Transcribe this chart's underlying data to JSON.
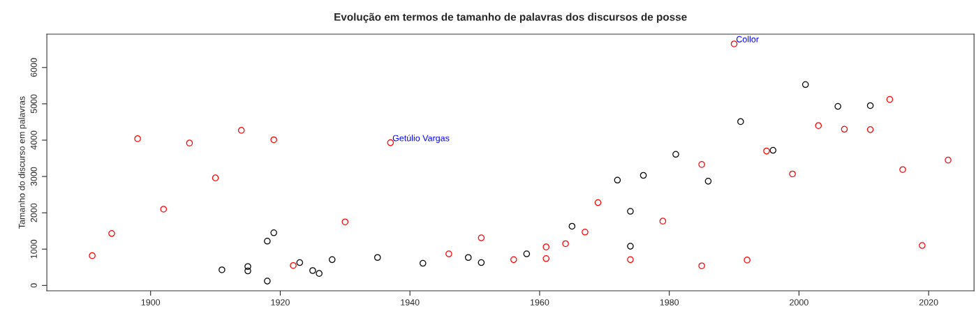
{
  "chart_data": {
    "type": "scatter",
    "title": "Evolução em termos de tamanho de palavras dos discursos de posse",
    "ylabel": "Tamanho do discurso em palavras",
    "xlim": [
      1884,
      2027
    ],
    "ylim": [
      -147,
      6916
    ],
    "xticks": [
      1900,
      1920,
      1940,
      1960,
      1980,
      2000,
      2020
    ],
    "yticks": [
      0,
      1000,
      2000,
      3000,
      4000,
      5000,
      6000
    ],
    "marker": "circle",
    "grid": false,
    "series": [
      {
        "color": "#ff0000",
        "x": [
          1891,
          1894,
          1898,
          1902,
          1906,
          1910,
          1914,
          1919,
          1922,
          1930,
          1937,
          1946,
          1951,
          1956,
          1961,
          1961,
          1964,
          1967,
          1969,
          1974,
          1979,
          1985,
          1985,
          1990,
          1992,
          1995,
          1999,
          2003,
          2007,
          2011,
          2014,
          2016,
          2019,
          2023
        ],
        "values": [
          820,
          1430,
          4040,
          2100,
          3920,
          2960,
          4270,
          4010,
          550,
          1750,
          3930,
          870,
          1310,
          710,
          1060,
          740,
          1150,
          1470,
          2280,
          710,
          1770,
          3330,
          540,
          6650,
          700,
          3700,
          3070,
          4400,
          4300,
          4290,
          5120,
          3190,
          1100,
          3450
        ]
      },
      {
        "color": "#000000",
        "x": [
          1911,
          1915,
          1915,
          1918,
          1919,
          1918,
          1923,
          1925,
          1926,
          1928,
          1935,
          1942,
          1949,
          1951,
          1958,
          1965,
          1972,
          1974,
          1974,
          1976,
          1981,
          1986,
          1991,
          1996,
          2001,
          2006,
          2011
        ],
        "values": [
          430,
          520,
          400,
          1220,
          1450,
          120,
          630,
          410,
          330,
          710,
          770,
          610,
          770,
          630,
          870,
          1630,
          2900,
          2040,
          1080,
          3030,
          3610,
          2870,
          4510,
          3720,
          5530,
          4930,
          4950
        ]
      }
    ],
    "annotations": [
      {
        "text": "Getúlio Vargas",
        "x": 1937,
        "y": 3930
      },
      {
        "text": "Collor",
        "x": 1990,
        "y": 6650
      }
    ]
  }
}
